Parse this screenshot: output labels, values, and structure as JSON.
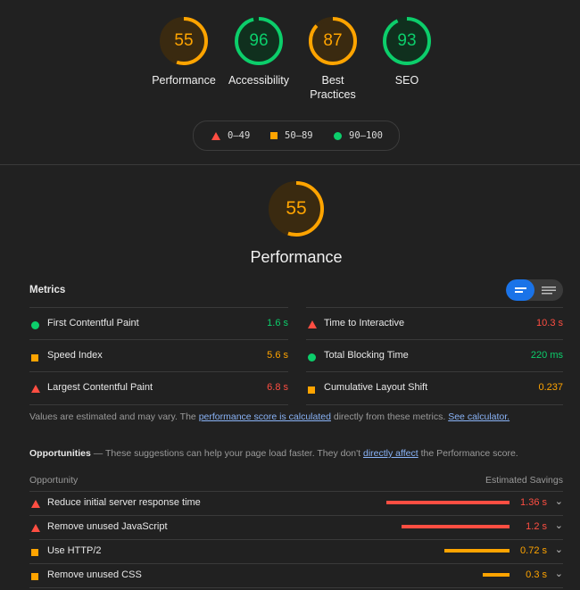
{
  "colors": {
    "fail": "#ff4e42",
    "average": "#ffa400",
    "pass": "#0cce6b",
    "link": "#8ab4f8",
    "toggle_active": "#1a73e8"
  },
  "gauges": [
    {
      "score": 55,
      "label": "Performance",
      "rating": "average"
    },
    {
      "score": 96,
      "label": "Accessibility",
      "rating": "pass"
    },
    {
      "score": 87,
      "label": "Best Practices",
      "rating": "average"
    },
    {
      "score": 93,
      "label": "SEO",
      "rating": "pass"
    }
  ],
  "legend": [
    {
      "range": "0–49",
      "icon": "triangle-icon",
      "rating": "fail"
    },
    {
      "range": "50–89",
      "icon": "square-icon",
      "rating": "average"
    },
    {
      "range": "90–100",
      "icon": "circle-icon",
      "rating": "pass"
    }
  ],
  "performance": {
    "score": 55,
    "title": "Performance"
  },
  "metrics": {
    "title": "Metrics",
    "left": [
      {
        "label": "First Contentful Paint",
        "value": "1.6 s",
        "rating": "pass"
      },
      {
        "label": "Speed Index",
        "value": "5.6 s",
        "rating": "average"
      },
      {
        "label": "Largest Contentful Paint",
        "value": "6.8 s",
        "rating": "fail"
      }
    ],
    "right": [
      {
        "label": "Time to Interactive",
        "value": "10.3 s",
        "rating": "fail"
      },
      {
        "label": "Total Blocking Time",
        "value": "220 ms",
        "rating": "pass"
      },
      {
        "label": "Cumulative Layout Shift",
        "value": "0.237",
        "rating": "average"
      }
    ]
  },
  "note": {
    "prefix": "Values are estimated and may vary. The ",
    "link1": "performance score is calculated",
    "middle": " directly from these metrics. ",
    "link2": "See calculator."
  },
  "opportunities": {
    "title": "Opportunities",
    "intro_prefix": " — These suggestions can help your page load faster. They don't ",
    "intro_link": "directly affect",
    "intro_suffix": " the Performance score.",
    "col_opportunity": "Opportunity",
    "col_savings": "Estimated Savings",
    "items": [
      {
        "label": "Reduce initial server response time",
        "value": "1.36 s",
        "rating": "fail",
        "bar_fraction": 1.0
      },
      {
        "label": "Remove unused JavaScript",
        "value": "1.2 s",
        "rating": "fail",
        "bar_fraction": 0.88
      },
      {
        "label": "Use HTTP/2",
        "value": "0.72 s",
        "rating": "average",
        "bar_fraction": 0.53
      },
      {
        "label": "Remove unused CSS",
        "value": "0.3 s",
        "rating": "average",
        "bar_fraction": 0.22
      }
    ]
  }
}
